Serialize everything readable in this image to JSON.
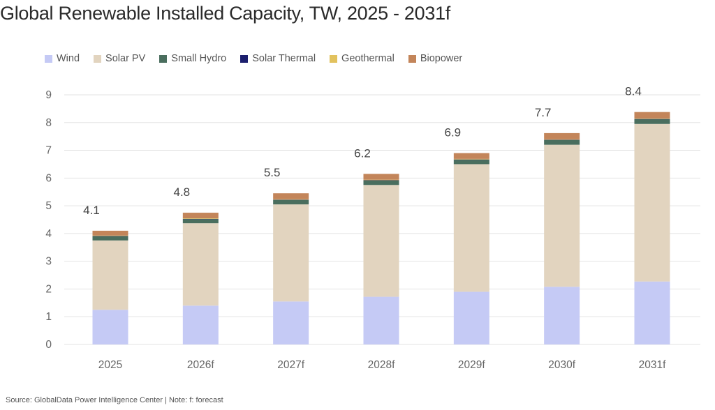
{
  "title": "Global Renewable Installed Capacity, TW, 2025 - 2031f",
  "source": "Source: GlobalData Power Intelligence Center | Note: f: forecast",
  "chart_data": {
    "type": "bar",
    "stacked": true,
    "categories": [
      "2025",
      "2026f",
      "2027f",
      "2028f",
      "2029f",
      "2030f",
      "2031f"
    ],
    "totals": [
      "4.1",
      "4.8",
      "5.5",
      "6.2",
      "6.9",
      "7.7",
      "8.4"
    ],
    "ylim": [
      0,
      9
    ],
    "yticks": [
      "0",
      "1",
      "2",
      "3",
      "4",
      "5",
      "6",
      "7",
      "8",
      "9"
    ],
    "grid": true,
    "legend_position": "top-left",
    "series": [
      {
        "name": "Wind",
        "color": "#c5caf5",
        "values": [
          1.25,
          1.4,
          1.55,
          1.72,
          1.9,
          2.08,
          2.27
        ]
      },
      {
        "name": "Solar PV",
        "color": "#e2d4bf",
        "values": [
          2.5,
          2.97,
          3.5,
          4.03,
          4.6,
          5.12,
          5.68
        ]
      },
      {
        "name": "Small Hydro",
        "color": "#4a6e5e",
        "values": [
          0.15,
          0.15,
          0.16,
          0.16,
          0.16,
          0.17,
          0.17
        ]
      },
      {
        "name": "Solar Thermal",
        "color": "#1c1f6e",
        "values": [
          0.01,
          0.01,
          0.01,
          0.01,
          0.01,
          0.01,
          0.01
        ]
      },
      {
        "name": "Geothermal",
        "color": "#e2c25e",
        "values": [
          0.02,
          0.02,
          0.02,
          0.02,
          0.02,
          0.02,
          0.02
        ]
      },
      {
        "name": "Biopower",
        "color": "#c3855a",
        "values": [
          0.17,
          0.2,
          0.21,
          0.21,
          0.21,
          0.22,
          0.23
        ]
      }
    ]
  }
}
